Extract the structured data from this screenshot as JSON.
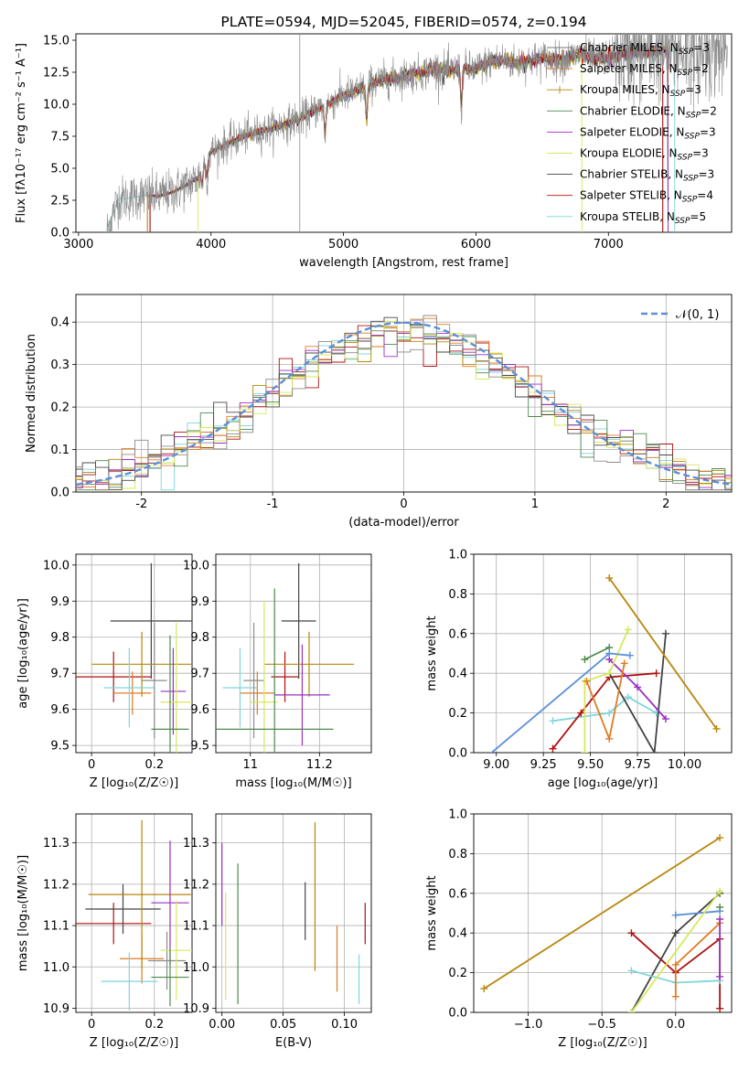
{
  "series_colors": [
    "#8c8c8c",
    "#e07b24",
    "#b8860b",
    "#4f8a4f",
    "#9b30c0",
    "#d8e85a",
    "#444444",
    "#b01010",
    "#7fd6d8"
  ],
  "chart_data": [
    {
      "id": "spectrum",
      "type": "line",
      "title": "PLATE=0594, MJD=52045, FIBERID=0574, z=0.194",
      "xlabel": "wavelength [Angstrom, rest frame]",
      "ylabel": "Flux [fλ10⁻¹⁷ erg cm⁻² s⁻¹ A⁻¹]",
      "xlim": [
        2980,
        7930
      ],
      "ylim": [
        0,
        15.5
      ],
      "xticks": [
        3000,
        4000,
        5000,
        6000,
        7000
      ],
      "yticks": [
        0.0,
        2.5,
        5.0,
        7.5,
        10.0,
        12.5,
        15.0
      ],
      "x": [
        3210,
        3300,
        3400,
        3500,
        3600,
        3700,
        3800,
        3900,
        4000,
        4100,
        4200,
        4300,
        4400,
        4500,
        4600,
        4700,
        4800,
        4900,
        5000,
        5100,
        5200,
        5300,
        5400,
        5500,
        5600,
        5700,
        5800,
        5900,
        6000,
        6100,
        6200,
        6300,
        6400,
        6500,
        6600,
        6700,
        6800,
        6900,
        7000,
        7100,
        7200,
        7300,
        7400,
        7500
      ],
      "model": [
        0.0,
        2.6,
        2.7,
        2.9,
        2.8,
        3.1,
        3.6,
        4.2,
        6.3,
        6.8,
        7.3,
        7.7,
        7.9,
        8.3,
        8.6,
        9.0,
        9.6,
        10.1,
        10.7,
        11.0,
        11.6,
        11.9,
        12.1,
        12.3,
        12.5,
        12.8,
        12.6,
        12.8,
        12.7,
        13.3,
        13.5,
        13.2,
        13.4,
        13.6,
        13.4,
        13.6,
        14.0,
        13.5,
        13.7,
        13.9,
        14.0,
        14.1,
        14.2,
        14.2
      ],
      "series": [
        {
          "name": "Chabrier MILES, N_SSP=3",
          "label_main": "Chabrier MILES, N",
          "label_sub": "SSP",
          "label_tail": "=3"
        },
        {
          "name": "Salpeter MILES, N_SSP=2",
          "label_main": "Salpeter MILES, N",
          "label_sub": "SSP",
          "label_tail": "=2"
        },
        {
          "name": "Kroupa MILES, N_SSP=3",
          "label_main": "Kroupa MILES, N",
          "label_sub": "SSP",
          "label_tail": "=3"
        },
        {
          "name": "Chabrier ELODIE, N_SSP=2",
          "label_main": "Chabrier ELODIE, N",
          "label_sub": "SSP",
          "label_tail": "=2"
        },
        {
          "name": "Salpeter ELODIE, N_SSP=3",
          "label_main": "Salpeter ELODIE, N",
          "label_sub": "SSP",
          "label_tail": "=3"
        },
        {
          "name": "Kroupa ELODIE, N_SSP=3",
          "label_main": "Kroupa ELODIE, N",
          "label_sub": "SSP",
          "label_tail": "=3"
        },
        {
          "name": "Chabrier STELIB, N_SSP=3",
          "label_main": "Chabrier STELIB, N",
          "label_sub": "SSP",
          "label_tail": "=3"
        },
        {
          "name": "Salpeter STELIB, N_SSP=4",
          "label_main": "Salpeter STELIB, N",
          "label_sub": "SSP",
          "label_tail": "=4"
        },
        {
          "name": "Kroupa STELIB, N_SSP=5",
          "label_main": "Kroupa STELIB, N",
          "label_sub": "SSP",
          "label_tail": "=5"
        }
      ],
      "legend": "top-right",
      "grid": false
    },
    {
      "id": "residuals",
      "type": "line",
      "xlabel": "(data-model)/error",
      "ylabel": "Normed distribution",
      "xlim": [
        -2.5,
        2.5
      ],
      "ylim": [
        0,
        0.465
      ],
      "xticks": [
        -2,
        -1,
        0,
        1,
        2
      ],
      "yticks": [
        0.0,
        0.1,
        0.2,
        0.3,
        0.4
      ],
      "legend_label": "𝒩(0, 1)",
      "legend": "top-right",
      "grid": true
    },
    {
      "id": "age_vs_Z",
      "type": "scatter",
      "xlabel": "Z [log₁₀(Z/Z☉)]",
      "ylabel": "age  [log₁₀(age/yr)]",
      "xlim": [
        -0.05,
        0.32
      ],
      "ylim": [
        9.48,
        10.03
      ],
      "xticks": [
        0.0,
        0.2
      ],
      "yticks": [
        9.5,
        9.6,
        9.7,
        9.8,
        9.9,
        10.0
      ],
      "points": [
        {
          "x": 0.07,
          "y": 9.69,
          "xerr": 0.12,
          "yerr": 0.07,
          "series": 7
        },
        {
          "x": 0.13,
          "y": 9.645,
          "xerr": 0.06,
          "yerr": 0.06,
          "series": 1
        },
        {
          "x": 0.19,
          "y": 9.845,
          "xerr": 0.13,
          "yerr": 0.16,
          "series": 6
        },
        {
          "x": 0.16,
          "y": 9.725,
          "xerr": 0.16,
          "yerr": 0.09,
          "series": 2
        },
        {
          "x": 0.12,
          "y": 9.66,
          "xerr": 0.08,
          "yerr": 0.11,
          "series": 8
        },
        {
          "x": 0.2,
          "y": 9.68,
          "xerr": 0.04,
          "yerr": 0.16,
          "series": 0
        },
        {
          "x": 0.26,
          "y": 9.65,
          "xerr": 0.04,
          "yerr": 0.12,
          "series": 4
        },
        {
          "x": 0.27,
          "y": 9.62,
          "xerr": 0.05,
          "yerr": 0.22,
          "series": 5
        },
        {
          "x": 0.25,
          "y": 9.545,
          "xerr": 0.06,
          "yerr": 0.26,
          "series": 3
        }
      ],
      "grid": true
    },
    {
      "id": "age_vs_mass",
      "type": "scatter",
      "xlabel": "mass [log₁₀(M/M☉)]",
      "ylabel": "",
      "xlim": [
        10.9,
        11.35
      ],
      "ylim": [
        9.48,
        10.03
      ],
      "xticks": [
        11.0,
        11.2
      ],
      "yticks": [
        9.5,
        9.6,
        9.7,
        9.8,
        9.9,
        10.0
      ],
      "points": [
        {
          "x": 11.1,
          "y": 9.69,
          "xerr": 0.04,
          "yerr": 0.07,
          "series": 7
        },
        {
          "x": 11.02,
          "y": 9.645,
          "xerr": 0.05,
          "yerr": 0.06,
          "series": 1
        },
        {
          "x": 11.14,
          "y": 9.845,
          "xerr": 0.05,
          "yerr": 0.16,
          "series": 6
        },
        {
          "x": 11.17,
          "y": 9.725,
          "xerr": 0.13,
          "yerr": 0.09,
          "series": 2
        },
        {
          "x": 10.97,
          "y": 9.66,
          "xerr": 0.05,
          "yerr": 0.11,
          "series": 8
        },
        {
          "x": 11.01,
          "y": 9.68,
          "xerr": 0.03,
          "yerr": 0.16,
          "series": 0
        },
        {
          "x": 11.15,
          "y": 9.64,
          "xerr": 0.08,
          "yerr": 0.14,
          "series": 4
        },
        {
          "x": 11.04,
          "y": 9.62,
          "xerr": 0.04,
          "yerr": 0.28,
          "series": 5
        },
        {
          "x": 11.07,
          "y": 9.545,
          "xerr": 0.17,
          "yerr": 0.39,
          "series": 3
        }
      ],
      "grid": true
    },
    {
      "id": "weight_vs_age",
      "type": "line",
      "xlabel": "age  [log₁₀(age/yr)]",
      "ylabel": "mass weight",
      "xlim": [
        8.88,
        10.25
      ],
      "ylim": [
        0,
        1.0
      ],
      "xticks": [
        9.0,
        9.25,
        9.5,
        9.75,
        10.0
      ],
      "xticklabels": [
        "9.00",
        "9.25",
        "9.50",
        "9.75",
        "10.00"
      ],
      "yticks": [
        0.0,
        0.2,
        0.4,
        0.6,
        0.8,
        1.0
      ],
      "series_points": [
        {
          "series": 8,
          "x": [
            9.3,
            9.6,
            9.7,
            9.85
          ],
          "y": [
            0.16,
            0.2,
            0.28,
            0.2
          ]
        },
        {
          "series": 7,
          "x": [
            9.3,
            9.45,
            9.6,
            9.85
          ],
          "y": [
            0.02,
            0.2,
            0.38,
            0.4
          ]
        },
        {
          "series": 6,
          "x": [
            9.6,
            9.84,
            9.9
          ],
          "y": [
            0.4,
            0.0,
            0.6
          ]
        },
        {
          "series": 4,
          "x": [
            9.6,
            9.75,
            9.9
          ],
          "y": [
            0.47,
            0.33,
            0.17
          ]
        },
        {
          "series": 3,
          "x": [
            9.47,
            9.6
          ],
          "y": [
            0.47,
            0.53
          ]
        },
        {
          "series": 5,
          "x": [
            9.47,
            9.47,
            9.6,
            9.7
          ],
          "y": [
            0.0,
            0.36,
            0.4,
            0.62
          ]
        },
        {
          "series": 1,
          "x": [
            9.48,
            9.6,
            9.68
          ],
          "y": [
            0.36,
            0.07,
            0.45
          ]
        },
        {
          "series": 0,
          "x": [
            8.95,
            9.6,
            9.71
          ],
          "y": [
            -0.02,
            0.5,
            0.49
          ]
        },
        {
          "series": 2,
          "x": [
            9.6,
            10.17
          ],
          "y": [
            0.88,
            0.12
          ]
        }
      ],
      "grid": true
    },
    {
      "id": "mass_vs_Z",
      "type": "scatter",
      "xlabel": "Z [log₁₀(Z/Z☉)]",
      "ylabel": "mass [log₁₀(M/M☉)]",
      "xlim": [
        -0.05,
        0.32
      ],
      "ylim": [
        10.89,
        11.37
      ],
      "xticks": [
        0.0,
        0.2
      ],
      "yticks": [
        10.9,
        11.0,
        11.1,
        11.2,
        11.3
      ],
      "points": [
        {
          "x": 0.07,
          "y": 11.105,
          "xerr": 0.12,
          "yerr": 0.05,
          "series": 7
        },
        {
          "x": 0.16,
          "y": 11.02,
          "xerr": 0.07,
          "yerr": 0.06,
          "series": 1
        },
        {
          "x": 0.1,
          "y": 11.14,
          "xerr": 0.12,
          "yerr": 0.06,
          "series": 6
        },
        {
          "x": 0.16,
          "y": 11.175,
          "xerr": 0.17,
          "yerr": 0.18,
          "series": 2
        },
        {
          "x": 0.12,
          "y": 10.965,
          "xerr": 0.09,
          "yerr": 0.07,
          "series": 8
        },
        {
          "x": 0.24,
          "y": 11.015,
          "xerr": 0.06,
          "yerr": 0.07,
          "series": 0
        },
        {
          "x": 0.25,
          "y": 11.155,
          "xerr": 0.06,
          "yerr": 0.15,
          "series": 4
        },
        {
          "x": 0.27,
          "y": 11.04,
          "xerr": 0.05,
          "yerr": 0.12,
          "series": 5
        },
        {
          "x": 0.25,
          "y": 10.975,
          "xerr": 0.06,
          "yerr": 0.07,
          "series": 3
        }
      ],
      "grid": true
    },
    {
      "id": "mass_vs_ebv",
      "type": "scatter",
      "xlabel": "E(B-V)",
      "ylabel": "",
      "xlim": [
        -0.005,
        0.122
      ],
      "ylim": [
        10.89,
        11.37
      ],
      "xticks": [
        0.0,
        0.05,
        0.1
      ],
      "xticklabels": [
        "0.00",
        "0.05",
        "0.10"
      ],
      "yticks": [
        10.9,
        11.0,
        11.1,
        11.2,
        11.3
      ],
      "points": [
        {
          "x": 0.117,
          "y": 11.105,
          "xerr": 0,
          "yerr": 0.05,
          "series": 7
        },
        {
          "x": 0.094,
          "y": 11.02,
          "xerr": 0,
          "yerr": 0.08,
          "series": 1
        },
        {
          "x": 0.068,
          "y": 11.135,
          "xerr": 0,
          "yerr": 0.07,
          "series": 6
        },
        {
          "x": 0.076,
          "y": 11.17,
          "xerr": 0,
          "yerr": 0.18,
          "series": 2
        },
        {
          "x": 0.112,
          "y": 10.97,
          "xerr": 0,
          "yerr": 0.06,
          "series": 8
        },
        {
          "x": 0.0,
          "y": 11.2,
          "xerr": 0,
          "yerr": 0.1,
          "series": 4
        },
        {
          "x": 0.003,
          "y": 11.05,
          "xerr": 0,
          "yerr": 0.13,
          "series": 5
        },
        {
          "x": 0.013,
          "y": 11.08,
          "xerr": 0,
          "yerr": 0.17,
          "series": 3
        }
      ],
      "grid": true
    },
    {
      "id": "weight_vs_Z",
      "type": "line",
      "xlabel": "Z [log₁₀(Z/Z☉)]",
      "ylabel": "mass weight",
      "xlim": [
        -1.37,
        0.38
      ],
      "ylim": [
        0,
        1.0
      ],
      "xticks": [
        -1.0,
        -0.5,
        0.0
      ],
      "xticklabels": [
        "−1.0",
        "−0.5",
        "0.0"
      ],
      "yticks": [
        0.0,
        0.2,
        0.4,
        0.6,
        0.8,
        1.0
      ],
      "series_points": [
        {
          "series": 2,
          "x": [
            -1.3,
            0.3
          ],
          "y": [
            0.12,
            0.88
          ]
        },
        {
          "series": 7,
          "x": [
            -0.3,
            0.0,
            0.3,
            0.3
          ],
          "y": [
            0.4,
            0.2,
            0.37,
            0.02
          ]
        },
        {
          "series": 6,
          "x": [
            -0.3,
            0.0,
            0.3
          ],
          "y": [
            0.0,
            0.4,
            0.6
          ]
        },
        {
          "series": 8,
          "x": [
            -0.3,
            0.0,
            0.3
          ],
          "y": [
            0.21,
            0.15,
            0.16
          ]
        },
        {
          "series": 0,
          "x": [
            0.0,
            0.3
          ],
          "y": [
            0.49,
            0.51
          ]
        },
        {
          "series": 1,
          "x": [
            0.0,
            0.0,
            0.3
          ],
          "y": [
            0.08,
            0.24,
            0.45
          ]
        },
        {
          "series": 5,
          "x": [
            -0.3,
            0.3
          ],
          "y": [
            0.0,
            0.61
          ]
        },
        {
          "series": 3,
          "x": [
            0.3
          ],
          "y": [
            0.53
          ]
        },
        {
          "series": 4,
          "x": [
            0.3,
            0.3
          ],
          "y": [
            0.47,
            0.18
          ]
        }
      ],
      "grid": true
    }
  ]
}
